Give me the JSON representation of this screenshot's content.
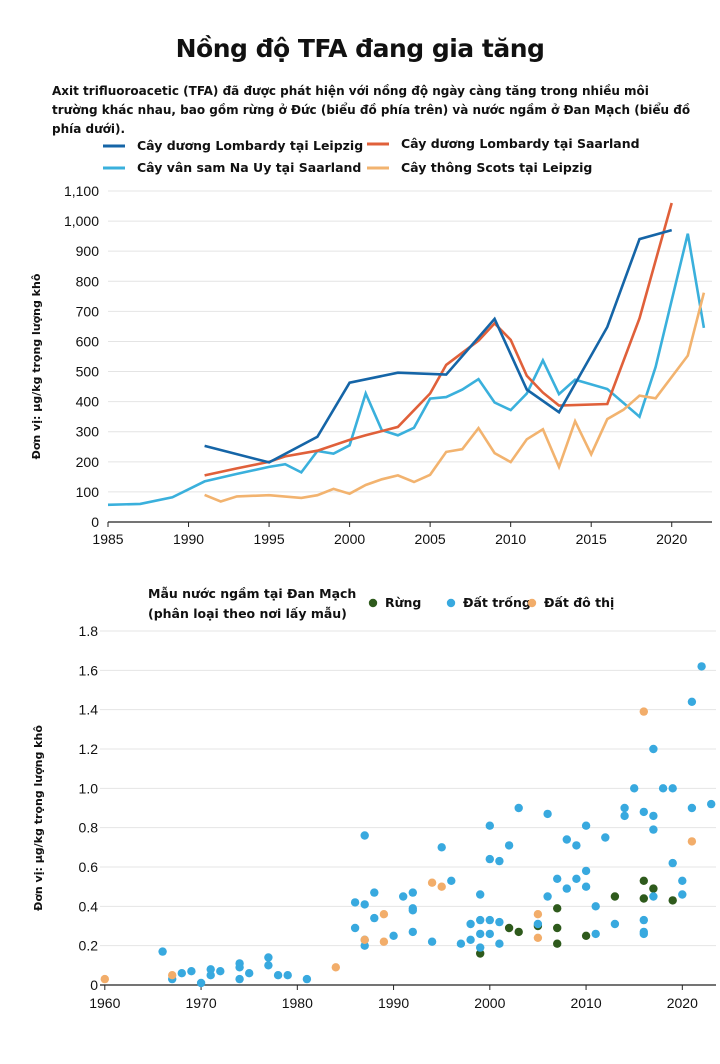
{
  "title": "Nồng độ TFA đang gia tăng",
  "subtitle": "Axit trifluoroacetic (TFA) đã được phát hiện với nồng độ ngày càng tăng trong nhiều môi trường khác nhau, bao gồm rừng ở Đức (biểu đồ phía trên) và nước ngầm ở Đan Mạch (biểu đồ phía dưới).",
  "colors": {
    "lombardy_leipzig": "#1565a7",
    "lombardy_saarland": "#e0603a",
    "spruce_saarland": "#3ab0dc",
    "scots_leipzig": "#f2b36f",
    "forest": "#2e5a1c",
    "open_land": "#38a9df",
    "urban": "#f2ad6a"
  },
  "chart_data": [
    {
      "type": "line",
      "ylabel": "Đơn vị: µg/kg trọng lượng khô",
      "xlim": [
        1985,
        2022.5
      ],
      "ylim": [
        0,
        1100
      ],
      "xticks": [
        "1985",
        "1990",
        "1995",
        "2000",
        "2005",
        "2010",
        "2015",
        "2020"
      ],
      "yticks": [
        "0",
        "100",
        "200",
        "300",
        "400",
        "500",
        "600",
        "700",
        "800",
        "900",
        "1,000",
        "1,100"
      ],
      "series": [
        {
          "name": "Cây dương Lombardy tại Leipzig",
          "color": "#1565a7",
          "points": [
            [
              1991,
              253
            ],
            [
              1995,
              198
            ],
            [
              1998,
              283
            ],
            [
              2000,
              463
            ],
            [
              2003,
              496
            ],
            [
              2006,
              490
            ],
            [
              2009,
              675
            ],
            [
              2011,
              440
            ],
            [
              2013,
              365
            ],
            [
              2016,
              648
            ],
            [
              2018,
              940
            ],
            [
              2020,
              970
            ]
          ]
        },
        {
          "name": "Cây vân sam Na Uy tại Saarland",
          "color": "#3ab0dc",
          "points": [
            [
              1985,
              57
            ],
            [
              1987,
              60
            ],
            [
              1989,
              82
            ],
            [
              1991,
              135
            ],
            [
              1993,
              160
            ],
            [
              1995,
              183
            ],
            [
              1996,
              192
            ],
            [
              1997,
              165
            ],
            [
              1998,
              236
            ],
            [
              1999,
              227
            ],
            [
              2000,
              255
            ],
            [
              2001,
              427
            ],
            [
              2002,
              305
            ],
            [
              2003,
              288
            ],
            [
              2004,
              313
            ],
            [
              2005,
              410
            ],
            [
              2006,
              415
            ],
            [
              2007,
              440
            ],
            [
              2008,
              475
            ],
            [
              2009,
              397
            ],
            [
              2010,
              372
            ],
            [
              2011,
              427
            ],
            [
              2012,
              537
            ],
            [
              2013,
              425
            ],
            [
              2014,
              473
            ],
            [
              2016,
              442
            ],
            [
              2018,
              350
            ],
            [
              2019,
              515
            ],
            [
              2021,
              958
            ],
            [
              2022,
              645
            ]
          ]
        },
        {
          "name": "Cây dương Lombardy tại Saarland",
          "color": "#e0603a",
          "points": [
            [
              1991,
              155
            ],
            [
              1993,
              178
            ],
            [
              1995,
              200
            ],
            [
              1996,
              218
            ],
            [
              1998,
              237
            ],
            [
              2000,
              273
            ],
            [
              2001,
              288
            ],
            [
              2003,
              316
            ],
            [
              2005,
              427
            ],
            [
              2006,
              522
            ],
            [
              2008,
              603
            ],
            [
              2009,
              660
            ],
            [
              2010,
              605
            ],
            [
              2011,
              486
            ],
            [
              2012,
              430
            ],
            [
              2013,
              387
            ],
            [
              2016,
              392
            ],
            [
              2018,
              677
            ],
            [
              2020,
              1060
            ]
          ]
        },
        {
          "name": "Cây thông Scots tại Leipzig",
          "color": "#f2b36f",
          "points": [
            [
              1991,
              90
            ],
            [
              1992,
              68
            ],
            [
              1993,
              85
            ],
            [
              1995,
              89
            ],
            [
              1997,
              80
            ],
            [
              1998,
              89
            ],
            [
              1999,
              110
            ],
            [
              2000,
              94
            ],
            [
              2001,
              123
            ],
            [
              2002,
              142
            ],
            [
              2003,
              155
            ],
            [
              2004,
              133
            ],
            [
              2005,
              157
            ],
            [
              2006,
              233
            ],
            [
              2007,
              242
            ],
            [
              2008,
              312
            ],
            [
              2009,
              229
            ],
            [
              2010,
              199
            ],
            [
              2011,
              275
            ],
            [
              2012,
              308
            ],
            [
              2013,
              183
            ],
            [
              2014,
              335
            ],
            [
              2015,
              225
            ],
            [
              2016,
              342
            ],
            [
              2017,
              373
            ],
            [
              2018,
              420
            ],
            [
              2019,
              411
            ],
            [
              2021,
              553
            ],
            [
              2022,
              762
            ]
          ]
        }
      ]
    },
    {
      "type": "scatter",
      "title": "Mẫu nước ngầm tại Đan Mạch\n(phân loại theo nơi lấy mẫu)",
      "title_lines": [
        "Mẫu nước ngầm tại Đan Mạch",
        "(phân loại theo nơi lấy mẫu)"
      ],
      "ylabel": "Đơn vị: µg/kg trọng lượng khô",
      "xlim": [
        1959.5,
        2023.5
      ],
      "ylim": [
        0,
        1.8
      ],
      "xticks": [
        "1960",
        "1970",
        "1980",
        "1990",
        "2000",
        "2010",
        "2020"
      ],
      "yticks": [
        "0",
        "0.2",
        "0.4",
        "0.6",
        "0.8",
        "1.0",
        "1.2",
        "1.4",
        "1.6",
        "1.8"
      ],
      "series": [
        {
          "name": "Rừng",
          "color": "#2e5a1c",
          "points": [
            [
              1999,
              0.16
            ],
            [
              2002,
              0.29
            ],
            [
              2003,
              0.27
            ],
            [
              2005,
              0.3
            ],
            [
              2007,
              0.39
            ],
            [
              2007,
              0.21
            ],
            [
              2007,
              0.29
            ],
            [
              2010,
              0.25
            ],
            [
              2013,
              0.45
            ],
            [
              2016,
              0.53
            ],
            [
              2016,
              0.44
            ],
            [
              2017,
              0.49
            ],
            [
              2019,
              0.43
            ]
          ]
        },
        {
          "name": "Đất trống",
          "color": "#38a9df",
          "points": [
            [
              1966,
              0.17
            ],
            [
              1967,
              0.03
            ],
            [
              1968,
              0.06
            ],
            [
              1969,
              0.07
            ],
            [
              1970,
              0.01
            ],
            [
              1971,
              0.08
            ],
            [
              1971,
              0.05
            ],
            [
              1972,
              0.07
            ],
            [
              1974,
              0.11
            ],
            [
              1974,
              0.03
            ],
            [
              1974,
              0.09
            ],
            [
              1975,
              0.06
            ],
            [
              1977,
              0.14
            ],
            [
              1977,
              0.1
            ],
            [
              1978,
              0.05
            ],
            [
              1979,
              0.05
            ],
            [
              1981,
              0.03
            ],
            [
              1986,
              0.42
            ],
            [
              1986,
              0.29
            ],
            [
              1987,
              0.41
            ],
            [
              1987,
              0.23
            ],
            [
              1987,
              0.2
            ],
            [
              1987,
              0.76
            ],
            [
              1988,
              0.47
            ],
            [
              1988,
              0.34
            ],
            [
              1990,
              0.25
            ],
            [
              1991,
              0.45
            ],
            [
              1992,
              0.47
            ],
            [
              1992,
              0.39
            ],
            [
              1992,
              0.38
            ],
            [
              1992,
              0.27
            ],
            [
              1994,
              0.22
            ],
            [
              1995,
              0.7
            ],
            [
              1996,
              0.53
            ],
            [
              1997,
              0.21
            ],
            [
              1998,
              0.31
            ],
            [
              1998,
              0.23
            ],
            [
              1999,
              0.46
            ],
            [
              1999,
              0.33
            ],
            [
              1999,
              0.26
            ],
            [
              1999,
              0.19
            ],
            [
              2000,
              0.81
            ],
            [
              2000,
              0.64
            ],
            [
              2000,
              0.33
            ],
            [
              2000,
              0.26
            ],
            [
              2001,
              0.63
            ],
            [
              2001,
              0.32
            ],
            [
              2001,
              0.21
            ],
            [
              2002,
              0.71
            ],
            [
              2003,
              0.9
            ],
            [
              2005,
              0.31
            ],
            [
              2006,
              0.87
            ],
            [
              2006,
              0.45
            ],
            [
              2007,
              0.54
            ],
            [
              2008,
              0.74
            ],
            [
              2008,
              0.49
            ],
            [
              2009,
              0.71
            ],
            [
              2009,
              0.54
            ],
            [
              2010,
              0.81
            ],
            [
              2010,
              0.58
            ],
            [
              2010,
              0.5
            ],
            [
              2011,
              0.4
            ],
            [
              2011,
              0.26
            ],
            [
              2012,
              0.75
            ],
            [
              2013,
              0.31
            ],
            [
              2014,
              0.9
            ],
            [
              2014,
              0.86
            ],
            [
              2015,
              1.0
            ],
            [
              2016,
              0.88
            ],
            [
              2016,
              0.33
            ],
            [
              2016,
              0.27
            ],
            [
              2016,
              0.26
            ],
            [
              2017,
              1.2
            ],
            [
              2017,
              0.86
            ],
            [
              2017,
              0.79
            ],
            [
              2017,
              0.45
            ],
            [
              2018,
              1.0
            ],
            [
              2019,
              1.0
            ],
            [
              2019,
              0.62
            ],
            [
              2020,
              0.53
            ],
            [
              2020,
              0.46
            ],
            [
              2021,
              1.44
            ],
            [
              2021,
              0.9
            ],
            [
              2022,
              1.62
            ],
            [
              2023,
              0.92
            ]
          ]
        },
        {
          "name": "Đất đô thị",
          "color": "#f2ad6a",
          "points": [
            [
              1960,
              0.03
            ],
            [
              1967,
              0.05
            ],
            [
              1984,
              0.09
            ],
            [
              1987,
              0.23
            ],
            [
              1989,
              0.22
            ],
            [
              1989,
              0.36
            ],
            [
              1994,
              0.52
            ],
            [
              1995,
              0.5
            ],
            [
              2005,
              0.24
            ],
            [
              2005,
              0.36
            ],
            [
              2016,
              1.39
            ],
            [
              2021,
              0.73
            ]
          ]
        }
      ]
    }
  ]
}
